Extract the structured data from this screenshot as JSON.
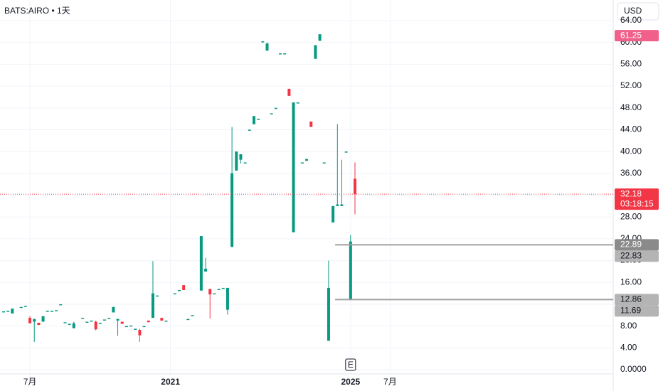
{
  "chart_data": {
    "type": "candlestick",
    "title": "BATS:AIRO • 1天",
    "currency_button": "USD",
    "event_marker": "E",
    "up_color": "#089981",
    "down_color": "#f23645",
    "grid": true,
    "ylim": [
      0,
      64
    ],
    "yticks": [
      {
        "value": 0,
        "label": "0.0000"
      },
      {
        "value": 4,
        "label": "4.00"
      },
      {
        "value": 8,
        "label": "8.00"
      },
      {
        "value": 12,
        "label": "12.00"
      },
      {
        "value": 16,
        "label": "16.00"
      },
      {
        "value": 20,
        "label": "20.00"
      },
      {
        "value": 24,
        "label": "24.00"
      },
      {
        "value": 28,
        "label": "28.00"
      },
      {
        "value": 32,
        "label": "32.00"
      },
      {
        "value": 36,
        "label": "36.00"
      },
      {
        "value": 40,
        "label": "40.00"
      },
      {
        "value": 44,
        "label": "44.00"
      },
      {
        "value": 48,
        "label": "48.00"
      },
      {
        "value": 52,
        "label": "52.00"
      },
      {
        "value": 56,
        "label": "56.00"
      },
      {
        "value": 60,
        "label": "60.00"
      },
      {
        "value": 64,
        "label": "64.00"
      }
    ],
    "categories": [
      null,
      null,
      null,
      null,
      null,
      null,
      "7月",
      null,
      null,
      null,
      null,
      null,
      null,
      null,
      null,
      null,
      null,
      null,
      null,
      null,
      null,
      null,
      null,
      null,
      null,
      null,
      null,
      null,
      null,
      null,
      null,
      null,
      null,
      null,
      null,
      null,
      null,
      null,
      "2021",
      null,
      null,
      null,
      null,
      null,
      null,
      null,
      null,
      null,
      null,
      null,
      null,
      null,
      null,
      null,
      null,
      null,
      null,
      null,
      null,
      null,
      null,
      null,
      null,
      null,
      null,
      null,
      null,
      null,
      null,
      null,
      null,
      null,
      null,
      null,
      null,
      null,
      null,
      null,
      null,
      "2025",
      null,
      null,
      null,
      null,
      null,
      null,
      null,
      null,
      "7月"
    ],
    "candles": [
      {
        "open": 10.7,
        "high": 10.7,
        "low": 10.7,
        "close": 10.7
      },
      {
        "open": 10.8,
        "high": 10.8,
        "low": 10.8,
        "close": 10.8
      },
      {
        "open": 10.3,
        "high": 11.2,
        "low": 10.3,
        "close": 11.2
      },
      null,
      {
        "open": 11.5,
        "high": 11.5,
        "low": 11.5,
        "close": 11.5
      },
      {
        "open": 11.7,
        "high": 11.7,
        "low": 11.7,
        "close": 11.7
      },
      {
        "open": 9.5,
        "high": 9.8,
        "low": 8.5,
        "close": 8.5
      },
      {
        "open": 8.8,
        "high": 9.3,
        "low": 5.1,
        "close": 9.3
      },
      {
        "open": 8.6,
        "high": 8.6,
        "low": 8.2,
        "close": 8.2
      },
      {
        "open": 8.8,
        "high": 9.8,
        "low": 8.8,
        "close": 9.8
      },
      {
        "open": 10.8,
        "high": 10.8,
        "low": 10.8,
        "close": 10.8
      },
      {
        "open": 10.8,
        "high": 10.8,
        "low": 10.8,
        "close": 10.8
      },
      {
        "open": 10.9,
        "high": 10.9,
        "low": 10.9,
        "close": 10.9
      },
      {
        "open": 12,
        "high": 12,
        "low": 12,
        "close": 12
      },
      {
        "open": 8.7,
        "high": 8.7,
        "low": 8.7,
        "close": 8.7
      },
      {
        "open": 8.4,
        "high": 8.4,
        "low": 8.4,
        "close": 8.4
      },
      {
        "open": 7.6,
        "high": 8.8,
        "low": 7.6,
        "close": 8.5
      },
      null,
      {
        "open": 9.5,
        "high": 9.5,
        "low": 9.5,
        "close": 9.5
      },
      {
        "open": 8.8,
        "high": 8.8,
        "low": 8.8,
        "close": 8.8
      },
      {
        "open": 9,
        "high": 9,
        "low": 9,
        "close": 9
      },
      {
        "open": 8.8,
        "high": 9,
        "low": 7.2,
        "close": 7.4
      },
      {
        "open": 8.6,
        "high": 8.6,
        "low": 8.6,
        "close": 8.6
      },
      {
        "open": 9.2,
        "high": 9.2,
        "low": 9.2,
        "close": 9.2
      },
      {
        "open": 9.5,
        "high": 9.5,
        "low": 9.5,
        "close": 9.5
      },
      {
        "open": 10.5,
        "high": 11.5,
        "low": 10.5,
        "close": 11.5
      },
      {
        "open": 9,
        "high": 9.3,
        "low": 6.2,
        "close": 9.3
      },
      {
        "open": 8.8,
        "high": 8.8,
        "low": 8.4,
        "close": 8.4
      },
      {
        "open": 8,
        "high": 8,
        "low": 8,
        "close": 8
      },
      {
        "open": 8.1,
        "high": 8.1,
        "low": 8.1,
        "close": 8.1
      },
      {
        "open": 7.5,
        "high": 7.5,
        "low": 7.5,
        "close": 7.5
      },
      {
        "open": 7.3,
        "high": 7.5,
        "low": 5.1,
        "close": 6.3
      },
      {
        "open": 8,
        "high": 8,
        "low": 8,
        "close": 8
      },
      {
        "open": 9,
        "high": 9,
        "low": 8.7,
        "close": 8.7
      },
      {
        "open": 9.5,
        "high": 19.9,
        "low": 9.5,
        "close": 14
      },
      {
        "open": 13.6,
        "high": 13.6,
        "low": 13.6,
        "close": 13.6
      },
      {
        "open": 9.5,
        "high": 9.5,
        "low": 9,
        "close": 9
      },
      {
        "open": 9,
        "high": 9,
        "low": 9,
        "close": 9
      },
      null,
      {
        "open": 14,
        "high": 14,
        "low": 14,
        "close": 14
      },
      {
        "open": 14.6,
        "high": 14.6,
        "low": 14.6,
        "close": 14.6
      },
      {
        "open": 15.5,
        "high": 15.5,
        "low": 14.6,
        "close": 14.6
      },
      {
        "open": 9.3,
        "high": 9.3,
        "low": 9.3,
        "close": 9.3
      },
      {
        "open": 10,
        "high": 10,
        "low": 10,
        "close": 10
      },
      null,
      {
        "open": 14.5,
        "high": 24.5,
        "low": 14.5,
        "close": 24.5
      },
      {
        "open": 18,
        "high": 20.5,
        "low": 18,
        "close": 18.5
      },
      {
        "open": 14.8,
        "high": 14.8,
        "low": 9.4,
        "close": 13.8
      },
      {
        "open": 14,
        "high": 14,
        "low": 14,
        "close": 14
      },
      {
        "open": 14.8,
        "high": 14.8,
        "low": 14.8,
        "close": 14.8
      },
      {
        "open": 15,
        "high": 15,
        "low": 15,
        "close": 15
      },
      {
        "open": 11,
        "high": 15,
        "low": 10.1,
        "close": 15
      },
      {
        "open": 22.5,
        "high": 44.5,
        "low": 22.5,
        "close": 36
      },
      {
        "open": 36.5,
        "high": 40,
        "low": 36.5,
        "close": 40
      },
      {
        "open": 38.5,
        "high": 39.5,
        "low": 37.8,
        "close": 39.5
      },
      {
        "open": 38,
        "high": 38,
        "low": 38,
        "close": 38
      },
      {
        "open": 44,
        "high": 44,
        "low": 44,
        "close": 44
      },
      {
        "open": 45,
        "high": 46.5,
        "low": 45,
        "close": 46.5
      },
      {
        "open": 46,
        "high": 46,
        "low": 46,
        "close": 46
      },
      {
        "open": 60.2,
        "high": 60.2,
        "low": 60.2,
        "close": 60.2
      },
      {
        "open": 58.5,
        "high": 60,
        "low": 58.5,
        "close": 59.8
      },
      {
        "open": 47,
        "high": 47,
        "low": 47,
        "close": 47
      },
      {
        "open": 48,
        "high": 48,
        "low": 48,
        "close": 48
      },
      {
        "open": 58,
        "high": 58,
        "low": 58,
        "close": 58
      },
      {
        "open": 58,
        "high": 58,
        "low": 58,
        "close": 58
      },
      {
        "open": 51.5,
        "high": 51.5,
        "low": 50.2,
        "close": 50.2
      },
      {
        "open": 25.2,
        "high": 49,
        "low": 25.2,
        "close": 49
      },
      {
        "open": 49,
        "high": 49,
        "low": 49,
        "close": 49
      },
      {
        "open": 38,
        "high": 38,
        "low": 38,
        "close": 38
      },
      {
        "open": 38.3,
        "high": 38.7,
        "low": 38.3,
        "close": 38.6
      },
      {
        "open": 45.5,
        "high": 45.5,
        "low": 44.5,
        "close": 44.5
      },
      {
        "open": 57,
        "high": 59.5,
        "low": 57,
        "close": 59.5
      },
      {
        "open": 60.3,
        "high": 61.5,
        "low": 60.3,
        "close": 61.5
      },
      {
        "open": 38,
        "high": 38,
        "low": 38,
        "close": 38
      },
      {
        "open": 5.3,
        "high": 20,
        "low": 5.3,
        "close": 15
      },
      {
        "open": 27,
        "high": 30,
        "low": 27,
        "close": 30
      },
      {
        "open": 30,
        "high": 45,
        "low": 30,
        "close": 30.3
      },
      {
        "open": 30,
        "high": 38.5,
        "low": 30,
        "close": 30.3
      },
      {
        "open": 40,
        "high": 40,
        "low": 40,
        "close": 40
      },
      {
        "open": 12.86,
        "high": 24.7,
        "low": 12.86,
        "close": 23.5
      },
      {
        "open": 35,
        "high": 38,
        "low": 28.5,
        "close": 32.18
      },
      null,
      null,
      null,
      null,
      null,
      null,
      null,
      null
    ],
    "price_labels": [
      {
        "value": 61.25,
        "color": "#f0608a",
        "text_color": "#ffffff"
      },
      {
        "value": 32.18,
        "color": "#f23645",
        "text_color": "#ffffff",
        "countdown": "03:18:15",
        "dotted_line": true
      },
      {
        "value": 22.89,
        "color": "#8a8a8a",
        "text_color": "#ffffff",
        "level_line": true
      },
      {
        "value": 22.83,
        "color": "#b4b4b4",
        "text_color": "#131722"
      },
      {
        "value": 12.86,
        "color": "#b4b4b4",
        "text_color": "#131722",
        "level_line": true
      },
      {
        "value": 11.69,
        "color": "#b4b4b4",
        "text_color": "#131722"
      }
    ]
  }
}
